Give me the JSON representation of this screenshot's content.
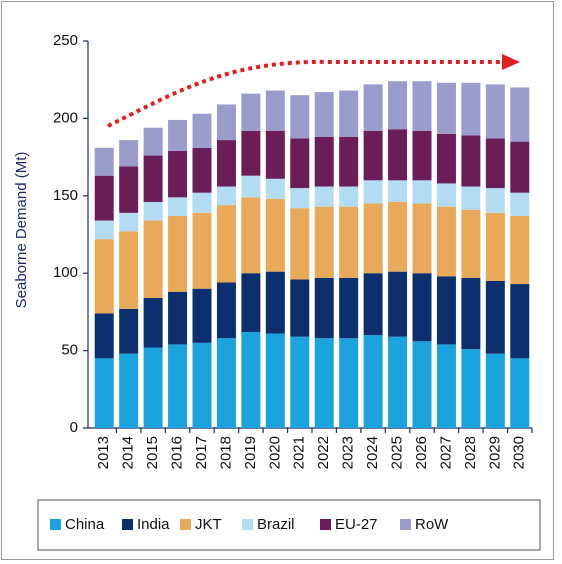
{
  "chart_data": {
    "type": "stacked_bar",
    "y_label": "Seaborne Demand (Mt)",
    "categories": [
      "2013",
      "2014",
      "2015",
      "2016",
      "2017",
      "2018",
      "2019",
      "2020",
      "2021",
      "2022",
      "2023",
      "2024",
      "2025",
      "2026",
      "2027",
      "2028",
      "2029",
      "2030"
    ],
    "series": [
      {
        "name": "China",
        "color": "#1aa3dc",
        "values": [
          45,
          48,
          52,
          54,
          55,
          58,
          62,
          61,
          59,
          58,
          58,
          60,
          59,
          56,
          54,
          51,
          48,
          45
        ]
      },
      {
        "name": "India",
        "color": "#0d2f6e",
        "values": [
          29,
          29,
          32,
          34,
          35,
          36,
          38,
          40,
          37,
          39,
          39,
          40,
          42,
          44,
          44,
          46,
          47,
          48
        ]
      },
      {
        "name": "JKT",
        "color": "#e8a95a",
        "values": [
          48,
          50,
          50,
          49,
          49,
          50,
          49,
          47,
          46,
          46,
          46,
          45,
          45,
          45,
          45,
          44,
          44,
          44
        ]
      },
      {
        "name": "Brazil",
        "color": "#b3dcf2",
        "values": [
          12,
          12,
          12,
          12,
          13,
          12,
          14,
          13,
          13,
          13,
          13,
          15,
          14,
          15,
          15,
          15,
          16,
          15
        ]
      },
      {
        "name": "EU-27",
        "color": "#6b1d58",
        "values": [
          29,
          30,
          30,
          30,
          29,
          30,
          29,
          31,
          32,
          32,
          32,
          32,
          33,
          32,
          32,
          33,
          32,
          33
        ]
      },
      {
        "name": "RoW",
        "color": "#9c9ccc",
        "values": [
          18,
          17,
          18,
          20,
          22,
          23,
          24,
          26,
          28,
          29,
          30,
          30,
          31,
          32,
          33,
          34,
          35,
          35
        ]
      }
    ],
    "ylim": [
      0,
      250
    ],
    "yticks": [
      0,
      50,
      100,
      150,
      200,
      250
    ],
    "grid": false,
    "legend": "bottom"
  }
}
